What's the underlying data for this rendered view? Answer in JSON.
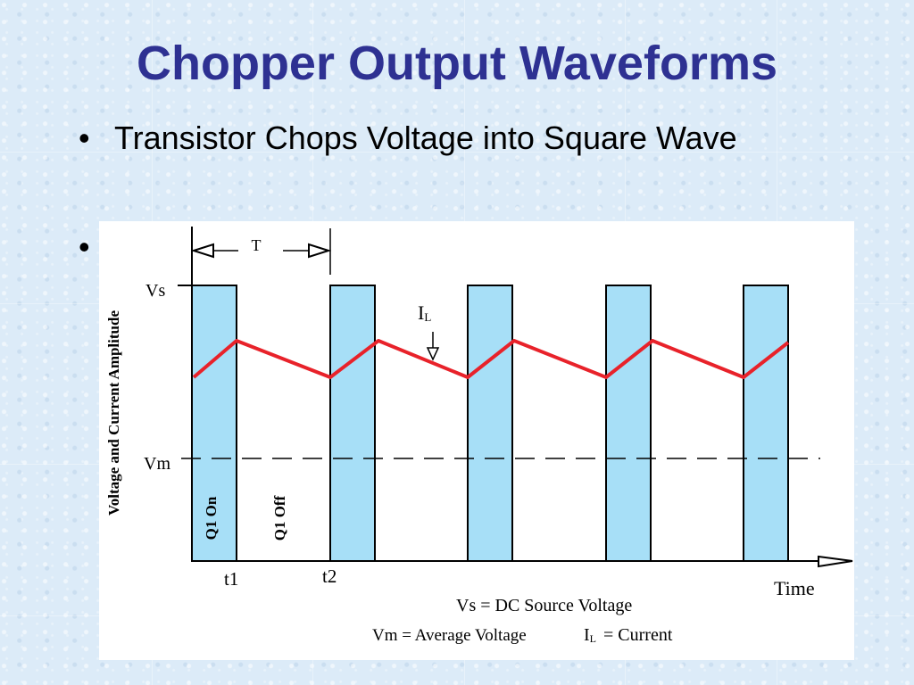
{
  "slide": {
    "title": "Chopper Output Waveforms",
    "bullets": [
      {
        "marker": "•",
        "text": "Transistor Chops Voltage into Square Wave"
      },
      {
        "marker": "•",
        "text": ""
      }
    ]
  },
  "diagram": {
    "period_label": "T",
    "y_axis_label": "Voltage and Current Amplitude",
    "vs_label": "Vs",
    "vm_label": "Vm",
    "current_label_main": "I",
    "current_label_sub": "L",
    "q1_on_label": "Q1 On",
    "q1_off_label": "Q1 Off",
    "t1_label": "t1",
    "t2_label": "t2",
    "x_axis_label": "Time",
    "legend_vs": "Vs = DC Source Voltage",
    "legend_vm": "Vm = Average Voltage",
    "legend_il_main": "I",
    "legend_il_sub": "L",
    "legend_il_text": "=   Current",
    "colors": {
      "pulse_fill": "#a7dff7",
      "current_line": "#e8222a",
      "title": "#2e3192",
      "background": "#dcebf8"
    }
  }
}
